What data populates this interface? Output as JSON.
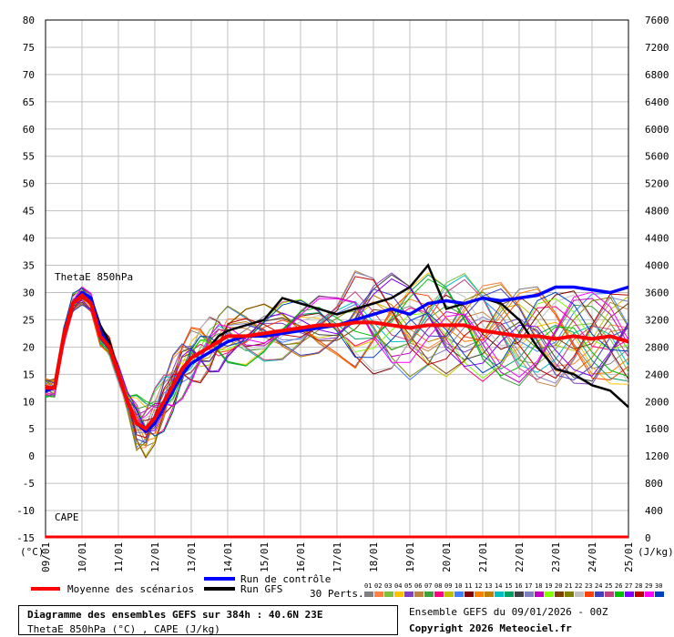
{
  "chart_data": {
    "type": "line",
    "left_axis": {
      "label": "(°C)",
      "ticks": [
        80,
        75,
        70,
        65,
        60,
        55,
        50,
        45,
        40,
        35,
        30,
        25,
        20,
        15,
        10,
        5,
        0,
        -5,
        -10,
        -15
      ],
      "ylim": [
        -15,
        80
      ]
    },
    "right_axis": {
      "label": "(J/kg)",
      "ticks": [
        7600,
        7200,
        6800,
        6400,
        6000,
        5600,
        5200,
        4800,
        4400,
        4000,
        3600,
        3200,
        2800,
        2400,
        2000,
        1600,
        1200,
        800,
        400,
        0
      ]
    },
    "x_axis": {
      "ticks": [
        "09/01",
        "10/01",
        "11/01",
        "12/01",
        "13/01",
        "14/01",
        "15/01",
        "16/01",
        "17/01",
        "18/01",
        "19/01",
        "20/01",
        "21/01",
        "22/01",
        "23/01",
        "24/01",
        "25/01"
      ],
      "range_hours": [
        0,
        384
      ]
    },
    "annotations": {
      "thetae": "ThetaE 850hPa",
      "cape": "CAPE"
    },
    "series": [
      {
        "name": "Moyenne des scénarios",
        "color": "#ff0000",
        "x": [
          0,
          6,
          12,
          18,
          24,
          30,
          36,
          42,
          48,
          54,
          60,
          66,
          72,
          78,
          84,
          90,
          96,
          102,
          108,
          114,
          120,
          132,
          144,
          156,
          168,
          180,
          192,
          204,
          216,
          228,
          240,
          252,
          264,
          276,
          288,
          300,
          312,
          324,
          336,
          348,
          360,
          372,
          384
        ],
        "y": [
          12.5,
          12.5,
          22,
          28,
          29.5,
          28,
          22,
          20,
          15,
          10,
          6,
          5,
          7,
          10,
          13,
          16,
          18,
          19,
          20,
          21,
          22,
          22,
          22.5,
          23,
          23.5,
          24,
          24,
          24.5,
          24.5,
          24,
          23.5,
          24,
          24,
          24,
          23,
          22.5,
          22,
          22,
          21.5,
          22,
          21.5,
          22,
          21
        ]
      },
      {
        "name": "Run de contrôle",
        "color": "#0000ff",
        "x": [
          0,
          6,
          12,
          18,
          24,
          30,
          36,
          42,
          48,
          54,
          60,
          66,
          72,
          78,
          84,
          90,
          96,
          102,
          108,
          114,
          120,
          132,
          144,
          156,
          168,
          180,
          192,
          204,
          216,
          228,
          240,
          252,
          264,
          276,
          288,
          300,
          312,
          324,
          336,
          348,
          360,
          372,
          384
        ],
        "y": [
          12,
          12.5,
          22,
          28,
          30,
          29,
          23,
          20,
          15,
          10,
          6,
          4.5,
          6,
          9,
          12,
          15,
          17,
          18,
          19,
          20,
          21,
          22,
          22,
          22.5,
          23,
          23.5,
          24,
          25,
          26,
          27,
          26,
          28,
          28.5,
          28,
          29,
          28.5,
          29,
          29.5,
          31,
          31,
          30.5,
          30,
          31
        ]
      },
      {
        "name": "Run GFS",
        "color": "#000000",
        "x": [
          0,
          6,
          12,
          18,
          24,
          30,
          36,
          42,
          48,
          54,
          60,
          66,
          72,
          78,
          84,
          90,
          96,
          102,
          108,
          114,
          120,
          132,
          144,
          156,
          168,
          180,
          192,
          204,
          216,
          228,
          240,
          252,
          264,
          276,
          288,
          300,
          312,
          324,
          336,
          348,
          360,
          372,
          384
        ],
        "y": [
          12.5,
          12.5,
          22,
          28,
          30,
          29,
          24,
          21,
          15,
          10,
          6,
          5,
          7,
          10,
          13,
          16,
          18,
          19,
          20,
          22,
          23,
          24,
          25,
          29,
          28,
          27,
          26,
          27,
          28,
          29,
          31,
          35,
          27,
          28,
          29,
          28,
          25,
          20,
          16,
          15,
          13,
          12,
          9
        ]
      }
    ],
    "legend": {
      "mean": "Moyenne des scénarios",
      "control": "Run de contrôle",
      "gfs": "Run GFS",
      "perts": "30 Perts.",
      "pert_numbers": [
        "01",
        "02",
        "03",
        "04",
        "05",
        "06",
        "07",
        "08",
        "09",
        "10",
        "11",
        "12",
        "13",
        "14",
        "15",
        "16",
        "17",
        "18",
        "19",
        "20",
        "21",
        "22",
        "23",
        "24",
        "25",
        "26",
        "27",
        "28",
        "29",
        "30"
      ],
      "pert_colors": [
        "#808080",
        "#ff8040",
        "#80c040",
        "#ffc000",
        "#8040c0",
        "#c08040",
        "#40a040",
        "#ff0080",
        "#c0c000",
        "#4080ff",
        "#800000",
        "#ff8000",
        "#c08000",
        "#00c0c0",
        "#00a060",
        "#404040",
        "#8080c0",
        "#c000c0",
        "#80ff00",
        "#804000",
        "#808000",
        "#c0c0c0",
        "#ff4000",
        "#4040c0",
        "#c04080",
        "#00c000",
        "#8000ff",
        "#c00000",
        "#ff00ff",
        "#0040c0"
      ]
    }
  },
  "info": {
    "title": "Diagramme des ensembles GEFS sur 384h : 40.6N 23E",
    "subtitle": "ThetaE 850hPa (°C) , CAPE (J/kg)",
    "run": "Ensemble GEFS du 09/01/2026 - 00Z",
    "copyright": "Copyright 2026 Meteociel.fr"
  }
}
